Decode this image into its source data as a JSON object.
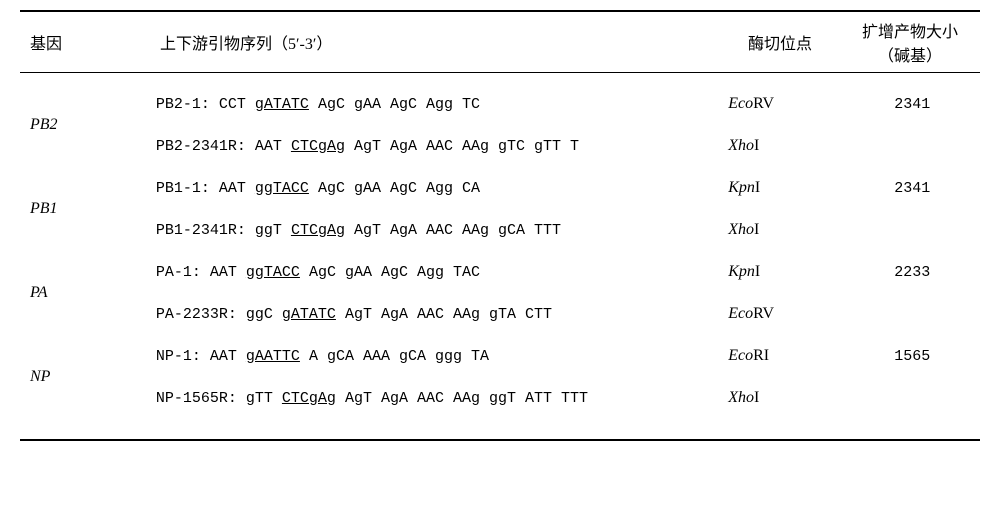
{
  "header": {
    "gene": "基因",
    "primer": "上下游引物序列（5′-3′）",
    "enzyme": "酶切位点",
    "size_line1": "扩增产物大小",
    "size_line2": "（碱基）"
  },
  "rows": [
    {
      "gene": "PB2",
      "primers": [
        {
          "name": "PB2-1",
          "seq_pre": "CCT ",
          "seq_u": "gATATC",
          "seq_post": " AgC gAA AgC Agg TC",
          "enzyme_i": "Eco",
          "enzyme_n": "RV",
          "size": "2341"
        },
        {
          "name": "PB2-2341R",
          "seq_pre": "AAT ",
          "seq_u": "CTCgAg",
          "seq_post": " AgT AgA AAC AAg gTC gTT T",
          "enzyme_i": "Xho",
          "enzyme_n": "I",
          "size": ""
        }
      ]
    },
    {
      "gene": "PB1",
      "primers": [
        {
          "name": "PB1-1",
          "seq_pre": "AAT ",
          "seq_u": "ggTACC",
          "seq_post": " AgC gAA AgC Agg CA",
          "enzyme_i": "Kpn",
          "enzyme_n": "I",
          "size": "2341"
        },
        {
          "name": "PB1-2341R",
          "seq_pre": "ggT ",
          "seq_u": "CTCgAg",
          "seq_post": " AgT AgA AAC AAg gCA TTT",
          "enzyme_i": "Xho",
          "enzyme_n": "I",
          "size": ""
        }
      ]
    },
    {
      "gene": "PA",
      "primers": [
        {
          "name": "PA-1",
          "seq_pre": "AAT ",
          "seq_u": "ggTACC",
          "seq_post": " AgC gAA AgC Agg TAC",
          "enzyme_i": "Kpn",
          "enzyme_n": "I",
          "size": "2233"
        },
        {
          "name": "PA-2233R",
          "seq_pre": "ggC ",
          "seq_u": "gATATC",
          "seq_post": " AgT AgA AAC AAg gTA CTT",
          "enzyme_i": "Eco",
          "enzyme_n": "RV",
          "size": ""
        }
      ]
    },
    {
      "gene": "NP",
      "primers": [
        {
          "name": "NP-1",
          "seq_pre": "AAT ",
          "seq_u": "gAATTC",
          "seq_post": " A gCA AAA gCA ggg TA",
          "enzyme_i": "Eco",
          "enzyme_n": "RI",
          "size": "1565"
        },
        {
          "name": "NP-1565R",
          "seq_pre": "gTT ",
          "seq_u": "CTCgAg",
          "seq_post": " AgT AgA AAC AAg ggT ATT TTT",
          "enzyme_i": "Xho",
          "enzyme_n": "I",
          "size": ""
        }
      ]
    }
  ]
}
